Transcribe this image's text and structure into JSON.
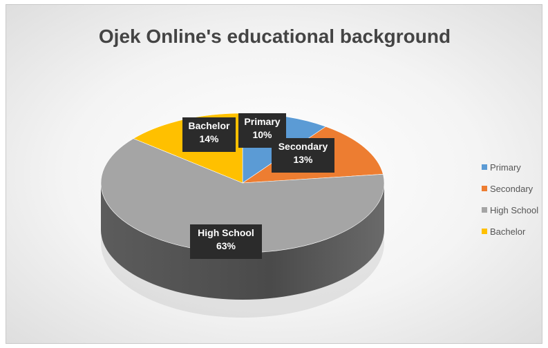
{
  "chart_data": {
    "type": "pie",
    "title": "Ojek Online's educational background",
    "categories": [
      "Primary",
      "Secondary",
      "High School",
      "Bachelor"
    ],
    "values": [
      10,
      13,
      63,
      14
    ],
    "value_labels": [
      "10%",
      "13%",
      "63%",
      "14%"
    ],
    "colors": [
      "#5b9bd5",
      "#ed7d31",
      "#a5a5a5",
      "#ffc000"
    ],
    "legend_position": "right",
    "three_d": true
  }
}
